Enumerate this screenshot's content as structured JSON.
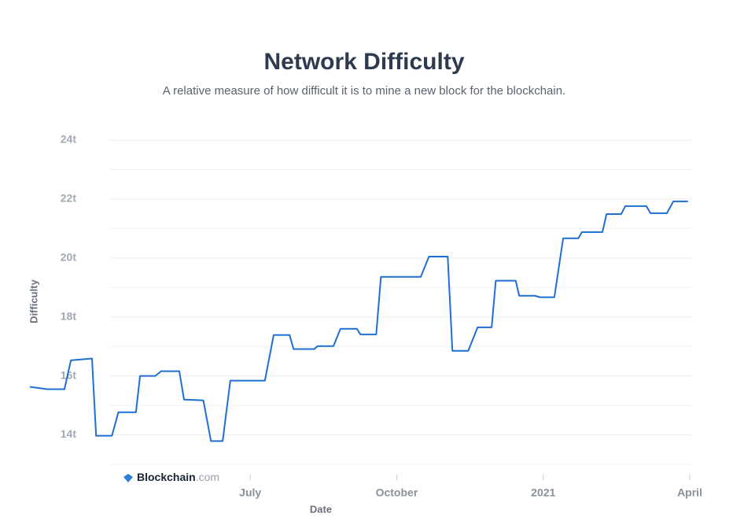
{
  "chart_data": {
    "type": "line",
    "title": "Network Difficulty",
    "subtitle": "A relative measure of how difficult it is to mine a new block for the blockchain.",
    "y_label": "Difficulty",
    "x_label": "Date",
    "watermark": {
      "name": "Blockchain",
      "suffix": ".com"
    },
    "xlim": [
      2020.124,
      2021.254
    ],
    "xticks": [
      {
        "value": 2020.5,
        "label": "July"
      },
      {
        "value": 2020.75,
        "label": "October"
      },
      {
        "value": 2021,
        "label": "2021"
      },
      {
        "value": 2021.25,
        "label": "April"
      }
    ],
    "ylim": [
      13,
      24
    ],
    "yticks": [
      {
        "value": 14,
        "label": "14t"
      },
      {
        "value": 16,
        "label": "16t"
      },
      {
        "value": 18,
        "label": "18t"
      },
      {
        "value": 20,
        "label": "20t"
      },
      {
        "value": 22,
        "label": "22t"
      },
      {
        "value": 24,
        "label": "24t"
      }
    ],
    "minor_yticks": [
      13,
      15,
      17,
      19,
      21,
      23
    ],
    "grid": true,
    "x": [
      2020.124,
      2020.154,
      2020.183,
      2020.194,
      2020.23,
      2020.237,
      2020.264,
      2020.275,
      2020.305,
      2020.312,
      2020.338,
      2020.348,
      2020.379,
      2020.387,
      2020.42,
      2020.433,
      2020.453,
      2020.466,
      2020.525,
      2020.54,
      2020.567,
      2020.574,
      2020.609,
      2020.615,
      2020.642,
      2020.654,
      2020.682,
      2020.688,
      2020.715,
      2020.723,
      2020.791,
      2020.805,
      2020.837,
      2020.845,
      2020.872,
      2020.888,
      2020.912,
      2020.919,
      2020.953,
      2020.959,
      2020.986,
      2020.994,
      2021.019,
      2021.034,
      2021.06,
      2021.066,
      2021.101,
      2021.108,
      2021.133,
      2021.14,
      2021.176,
      2021.183,
      2021.211,
      2021.222,
      2021.247
    ],
    "series": [
      {
        "name": "Difficulty",
        "color": "#1f6fd1",
        "values": [
          15.63,
          15.55,
          15.55,
          16.53,
          16.59,
          13.97,
          13.97,
          14.77,
          14.77,
          16.0,
          16.0,
          16.16,
          16.16,
          15.2,
          15.17,
          13.79,
          13.79,
          15.84,
          15.84,
          17.39,
          17.39,
          16.91,
          16.91,
          17.01,
          17.01,
          17.6,
          17.6,
          17.41,
          17.41,
          19.36,
          19.36,
          20.05,
          20.05,
          16.85,
          16.85,
          17.65,
          17.65,
          19.23,
          19.23,
          18.72,
          18.72,
          18.67,
          18.67,
          20.67,
          20.67,
          20.88,
          20.88,
          21.49,
          21.49,
          21.76,
          21.76,
          21.52,
          21.52,
          21.92,
          21.92
        ]
      }
    ]
  }
}
